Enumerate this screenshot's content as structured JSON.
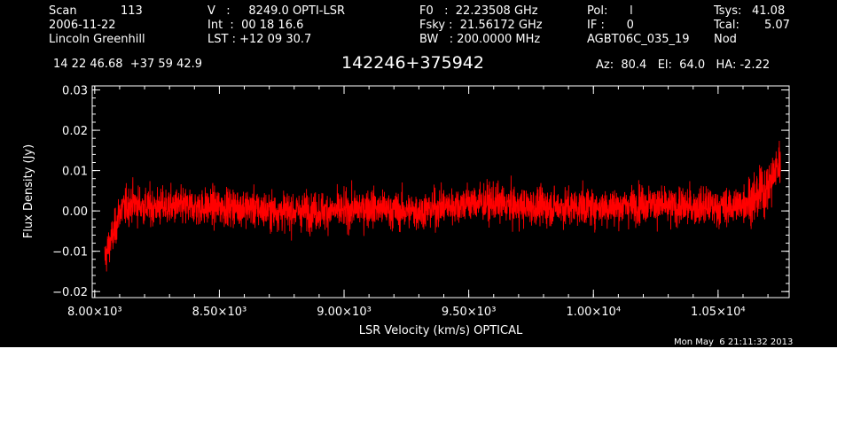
{
  "header": {
    "col1": {
      "scan_label": "Scan",
      "scan_value": "113",
      "date": "2006-11-22",
      "observer": "Lincoln Greenhill"
    },
    "col2": {
      "v_line": "V   :     8249.0 OPTI-LSR",
      "int_line": "Int  :  00 18 16.6",
      "lst_line": "LST : +12 09 30.7"
    },
    "col3": {
      "f0_line": "F0   :  22.23508 GHz",
      "fsky_line": "Fsky :  21.56172 GHz",
      "bw_line": "BW   : 200.0000 MHz"
    },
    "col4": {
      "pol_line": "Pol:      l",
      "if_line": "IF :      0",
      "project": "AGBT06C_035_19"
    },
    "col5": {
      "tsys_label": "Tsys:",
      "tsys_value": "41.08",
      "tcal_label": "Tcal:",
      "tcal_value": "5.07",
      "mode": "Nod"
    },
    "coords": "14 22 46.68  +37 59 42.9",
    "source_name": "142246+375942",
    "pointing": "Az:  80.4   El:  64.0   HA: -2.22",
    "timestamp": "Mon May  6 21:11:32 2013"
  },
  "colors": {
    "background": "#000000",
    "axes": "#ffffff",
    "trace": "#ff0000"
  },
  "chart_data": {
    "type": "line",
    "title": "142246+375942",
    "xlabel": "LSR Velocity (km/s) OPTICAL",
    "ylabel": "Flux Density (Jy)",
    "xlim": [
      7990,
      10785
    ],
    "ylim": [
      -0.0215,
      0.031
    ],
    "xticks": [
      {
        "value": 8000,
        "label": "8.00×10³"
      },
      {
        "value": 8500,
        "label": "8.50×10³"
      },
      {
        "value": 9000,
        "label": "9.00×10³"
      },
      {
        "value": 9500,
        "label": "9.50×10³"
      },
      {
        "value": 10000,
        "label": "1.00×10⁴"
      },
      {
        "value": 10500,
        "label": "1.05×10⁴"
      }
    ],
    "yticks": [
      {
        "value": -0.02,
        "label": "−0.02"
      },
      {
        "value": -0.01,
        "label": "−0.01"
      },
      {
        "value": 0.0,
        "label": "0.00"
      },
      {
        "value": 0.01,
        "label": "0.01"
      },
      {
        "value": 0.02,
        "label": "0.02"
      },
      {
        "value": 0.03,
        "label": "0.03"
      }
    ],
    "grid": false,
    "legend": "none",
    "series": [
      {
        "x": [
          8040,
          8060,
          8080,
          8100,
          8150,
          8200,
          8300,
          8400,
          8500,
          8600,
          8700,
          8800,
          8900,
          9000,
          9100,
          9200,
          9300,
          9400,
          9500,
          9600,
          9700,
          9800,
          9900,
          10000,
          10100,
          10200,
          10300,
          10400,
          10500,
          10550,
          10600,
          10650,
          10700,
          10730,
          10750
        ],
        "baseline": [
          -0.012,
          -0.008,
          -0.005,
          0.0,
          0.002,
          0.001,
          0.001,
          0.001,
          0.001,
          0.001,
          0.0,
          0.0,
          0.0,
          0.0,
          0.001,
          0.0,
          0.0,
          0.001,
          0.002,
          0.002,
          0.001,
          0.001,
          0.001,
          0.001,
          0.001,
          0.002,
          0.001,
          0.001,
          0.001,
          0.001,
          0.002,
          0.003,
          0.006,
          0.01,
          0.012
        ],
        "noise_rms": 0.004,
        "peak_min": -0.019,
        "peak_max": 0.023
      }
    ]
  }
}
